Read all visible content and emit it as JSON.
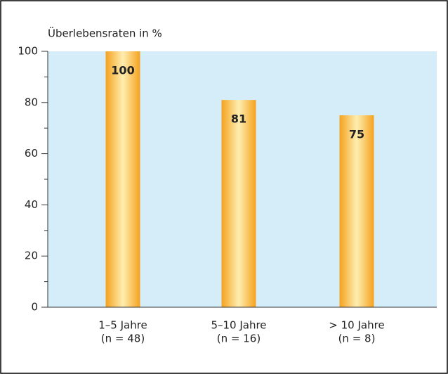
{
  "chart_data": {
    "type": "bar",
    "y_axis_label": "Überlebensraten in %",
    "categories": [
      "1–5 Jahre",
      "5–10 Jahre",
      "> 10 Jahre"
    ],
    "category_notes": [
      "(n = 48)",
      "(n = 16)",
      "(n = 8)"
    ],
    "values": [
      100,
      81,
      75
    ],
    "ylim": [
      0,
      100
    ],
    "yticks": [
      0,
      20,
      40,
      60,
      80,
      100
    ],
    "minor_yticks": [
      10,
      30,
      50,
      70,
      90
    ],
    "color": "#f5a21f",
    "plot_background": "#d4edf8"
  }
}
